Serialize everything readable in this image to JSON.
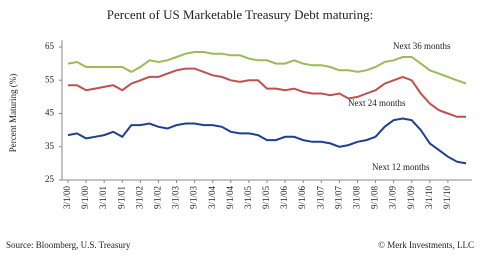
{
  "chart_data": {
    "type": "line",
    "title": "Percent of US Marketable Treasury Debt maturing:",
    "y_label": "Percent Maturing (%)",
    "source": "Source: Bloomberg, U.S. Treasury",
    "credit": "© Merk Investments, LLC",
    "categories": [
      "3/1/00",
      null,
      "9/1/00",
      null,
      "3/1/01",
      null,
      "9/1/01",
      null,
      "3/1/02",
      null,
      "9/1/02",
      null,
      "3/1/03",
      null,
      "9/1/03",
      null,
      "3/1/04",
      null,
      "9/1/04",
      null,
      "3/1/05",
      null,
      "9/1/05",
      null,
      "3/1/06",
      null,
      "9/1/06",
      null,
      "3/1/07",
      null,
      "9/1/07",
      null,
      "3/1/08",
      null,
      "9/1/08",
      null,
      "3/1/09",
      null,
      "9/1/09",
      null,
      "3/1/10",
      null,
      "9/1/10",
      null,
      null
    ],
    "series": [
      {
        "name": "Next 36 months",
        "color": "#9bbb59",
        "values": [
          60,
          60.5,
          59,
          59,
          59,
          59,
          59,
          57.5,
          59,
          61,
          60.5,
          61,
          62,
          63,
          63.5,
          63.5,
          63,
          63,
          62.5,
          62.5,
          61.5,
          61,
          61,
          60,
          60,
          61,
          60,
          59.5,
          59.5,
          59,
          58,
          58,
          57.5,
          58,
          59,
          60.5,
          61,
          62,
          62,
          60,
          58,
          57,
          56,
          55,
          54
        ]
      },
      {
        "name": "Next 24 months",
        "color": "#c0504d",
        "values": [
          53.5,
          53.5,
          52,
          52.5,
          53,
          53.5,
          52,
          54,
          55,
          56,
          56,
          57,
          58,
          58.5,
          58.5,
          57.5,
          56.5,
          56,
          55,
          54.5,
          55,
          55,
          52.5,
          52.5,
          52,
          52.5,
          51.5,
          51,
          51,
          50.5,
          51,
          49.5,
          50,
          51,
          52,
          54,
          55,
          56,
          55,
          51,
          48,
          46,
          45,
          44,
          44
        ]
      },
      {
        "name": "Next 12 months",
        "color": "#1f3f8f",
        "values": [
          38.5,
          39,
          37.5,
          38,
          38.5,
          39.5,
          38,
          41.5,
          41.5,
          42,
          41,
          40.5,
          41.5,
          42,
          42,
          41.5,
          41.5,
          41,
          39.5,
          39,
          39,
          38.5,
          37,
          37,
          38,
          38,
          37,
          36.5,
          36.5,
          36,
          35,
          35.5,
          36.5,
          37,
          38,
          41,
          43,
          43.5,
          43,
          40,
          36,
          34,
          32,
          30.5,
          30
        ]
      }
    ],
    "ylim": [
      25,
      65
    ],
    "yticks": [
      25,
      35,
      45,
      55,
      65
    ],
    "grid": false
  }
}
